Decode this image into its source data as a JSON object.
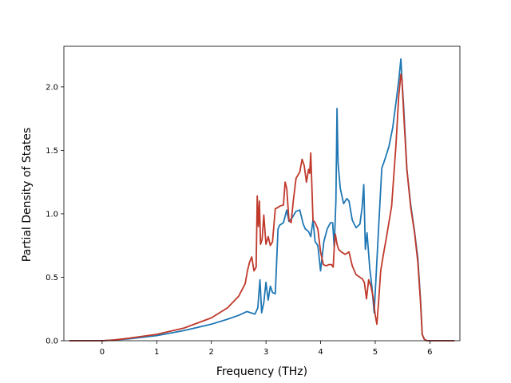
{
  "chart_data": {
    "type": "line",
    "title": "",
    "xlabel": "Frequency (THz)",
    "ylabel": "Partial Density of States",
    "xlim": [
      -0.7,
      6.55
    ],
    "ylim": [
      0.0,
      2.32
    ],
    "xticks": [
      0,
      1,
      2,
      3,
      4,
      5,
      6
    ],
    "xtick_labels": [
      "0",
      "1",
      "2",
      "3",
      "4",
      "5",
      "6"
    ],
    "yticks": [
      0.0,
      0.5,
      1.0,
      1.5,
      2.0
    ],
    "ytick_labels": [
      "0.0",
      "0.5",
      "1.0",
      "1.5",
      "2.0"
    ],
    "grid": false,
    "legend": "none",
    "series": [
      {
        "color": "#1f77b4",
        "x": [
          -0.6,
          0.0,
          0.2,
          0.5,
          1.0,
          1.5,
          2.0,
          2.3,
          2.5,
          2.65,
          2.72,
          2.8,
          2.85,
          2.89,
          2.92,
          2.96,
          3.0,
          3.04,
          3.08,
          3.12,
          3.17,
          3.22,
          3.25,
          3.32,
          3.38,
          3.42,
          3.48,
          3.55,
          3.62,
          3.68,
          3.72,
          3.78,
          3.82,
          3.86,
          3.9,
          3.95,
          4.0,
          4.06,
          4.12,
          4.18,
          4.22,
          4.25,
          4.28,
          4.3,
          4.32,
          4.36,
          4.42,
          4.48,
          4.52,
          4.58,
          4.65,
          4.72,
          4.76,
          4.79,
          4.82,
          4.85,
          4.9,
          4.94,
          4.98,
          5.02,
          5.07,
          5.12,
          5.17,
          5.25,
          5.32,
          5.38,
          5.43,
          5.47,
          5.49,
          5.52,
          5.58,
          5.65,
          5.72,
          5.78,
          5.83,
          5.86,
          5.9,
          5.95,
          6.1,
          6.45
        ],
        "y": [
          0.0,
          0.0,
          0.005,
          0.015,
          0.04,
          0.08,
          0.13,
          0.17,
          0.2,
          0.23,
          0.22,
          0.21,
          0.26,
          0.48,
          0.22,
          0.3,
          0.46,
          0.32,
          0.43,
          0.38,
          0.37,
          0.88,
          0.91,
          0.93,
          1.03,
          0.94,
          0.97,
          1.02,
          1.03,
          0.92,
          0.88,
          0.86,
          0.82,
          0.95,
          0.78,
          0.75,
          0.55,
          0.78,
          0.88,
          0.93,
          0.93,
          0.74,
          1.1,
          1.83,
          1.4,
          1.2,
          1.08,
          1.12,
          1.1,
          0.95,
          0.89,
          0.92,
          1.05,
          1.23,
          0.72,
          0.85,
          0.57,
          0.42,
          0.22,
          0.54,
          0.95,
          1.36,
          1.42,
          1.53,
          1.68,
          1.88,
          2.05,
          2.22,
          2.05,
          1.85,
          1.35,
          1.07,
          0.86,
          0.65,
          0.32,
          0.05,
          0.01,
          0.0,
          0.0,
          0.0
        ]
      },
      {
        "color": "#c0392b",
        "x": [
          -0.6,
          0.0,
          0.2,
          0.5,
          1.0,
          1.5,
          2.0,
          2.3,
          2.5,
          2.62,
          2.66,
          2.7,
          2.74,
          2.78,
          2.82,
          2.84,
          2.86,
          2.88,
          2.9,
          2.93,
          2.96,
          3.0,
          3.04,
          3.08,
          3.12,
          3.17,
          3.22,
          3.25,
          3.32,
          3.35,
          3.38,
          3.42,
          3.46,
          3.5,
          3.55,
          3.62,
          3.66,
          3.7,
          3.74,
          3.78,
          3.8,
          3.82,
          3.84,
          3.86,
          3.9,
          3.95,
          4.0,
          4.05,
          4.1,
          4.15,
          4.2,
          4.23,
          4.25,
          4.27,
          4.3,
          4.33,
          4.38,
          4.45,
          4.52,
          4.58,
          4.65,
          4.72,
          4.76,
          4.8,
          4.84,
          4.88,
          4.92,
          4.96,
          5.0,
          5.03,
          5.06,
          5.1,
          5.15,
          5.2,
          5.3,
          5.38,
          5.43,
          5.47,
          5.49,
          5.52,
          5.58,
          5.65,
          5.72,
          5.78,
          5.83,
          5.86,
          5.9,
          5.95,
          6.1,
          6.45
        ],
        "y": [
          0.0,
          0.0,
          0.005,
          0.02,
          0.05,
          0.1,
          0.18,
          0.26,
          0.35,
          0.45,
          0.55,
          0.62,
          0.66,
          0.55,
          0.58,
          1.14,
          0.9,
          1.1,
          0.76,
          0.8,
          0.99,
          0.76,
          0.82,
          0.75,
          0.78,
          1.04,
          1.05,
          1.06,
          1.07,
          1.25,
          1.2,
          0.95,
          0.93,
          1.1,
          1.28,
          1.33,
          1.43,
          1.38,
          1.25,
          1.35,
          1.32,
          1.48,
          1.22,
          0.95,
          0.93,
          0.88,
          0.7,
          0.6,
          0.59,
          0.6,
          0.6,
          0.58,
          0.73,
          0.84,
          0.76,
          0.72,
          0.7,
          0.68,
          0.7,
          0.59,
          0.52,
          0.5,
          0.49,
          0.46,
          0.33,
          0.48,
          0.43,
          0.35,
          0.2,
          0.13,
          0.3,
          0.55,
          0.68,
          0.8,
          1.06,
          1.55,
          1.93,
          2.1,
          2.05,
          1.8,
          1.35,
          1.05,
          0.85,
          0.62,
          0.3,
          0.05,
          0.01,
          0.0,
          0.0,
          0.0
        ]
      }
    ]
  }
}
